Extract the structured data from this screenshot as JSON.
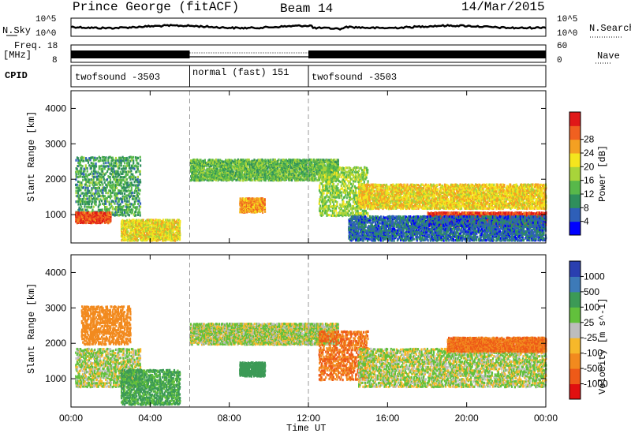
{
  "header": {
    "station": "Prince George (fitACF)",
    "beam": "Beam 14",
    "date": "14/Mar/2015"
  },
  "panels": {
    "nsky": {
      "label": "N.Sky",
      "tick_hi": "10^5",
      "tick_lo": "10^0"
    },
    "nsearch": {
      "label": "N.Search",
      "tick_hi": "10^5",
      "tick_lo": "10^0"
    },
    "freq": {
      "label_line1": "Freq.",
      "label_line2": "[MHz]",
      "tick_hi": "18",
      "tick_lo": "8"
    },
    "nave": {
      "label": "Nave",
      "tick_hi": "60",
      "tick_lo": "0"
    },
    "cpid": {
      "label": "CPID",
      "modes": [
        {
          "name": "twofsound -3503",
          "start_hour": 0,
          "end_hour": 6
        },
        {
          "name": "normal (fast) 151",
          "start_hour": 6,
          "end_hour": 12
        },
        {
          "name": "twofsound -3503",
          "start_hour": 12,
          "end_hour": 24
        }
      ]
    }
  },
  "chart_data": [
    {
      "type": "heatmap",
      "name": "power",
      "xlabel": "",
      "ylabel": "Slant Range [km]",
      "xlim": [
        0,
        24
      ],
      "ylim": [
        200,
        4500
      ],
      "y_ticks": [
        1000,
        2000,
        3000,
        4000
      ],
      "colorbar": {
        "label": "Power [dB]",
        "ticks": [
          "4",
          "8",
          "12",
          "16",
          "20",
          "24",
          "28"
        ],
        "range": [
          0,
          30
        ],
        "colors": [
          "#0000ff",
          "#2e5fb8",
          "#2f8f5c",
          "#58b84a",
          "#a8d43a",
          "#f4e51e",
          "#f4a022",
          "#f06020",
          "#e01818"
        ]
      },
      "echo_regions": [
        {
          "t": [
            0.2,
            3.5
          ],
          "range": [
            1000,
            2700
          ],
          "power": 10
        },
        {
          "t": [
            0.2,
            2.0
          ],
          "range": [
            800,
            1100
          ],
          "power": 26
        },
        {
          "t": [
            2.5,
            5.5
          ],
          "range": [
            300,
            900
          ],
          "power": 18
        },
        {
          "t": [
            6.0,
            13.5
          ],
          "range": [
            2000,
            2600
          ],
          "power": 12
        },
        {
          "t": [
            8.5,
            9.8
          ],
          "range": [
            1100,
            1500
          ],
          "power": 22
        },
        {
          "t": [
            12.5,
            15.0
          ],
          "range": [
            1000,
            2400
          ],
          "power": 14
        },
        {
          "t": [
            14.5,
            24.0
          ],
          "range": [
            1200,
            1900
          ],
          "power": 19
        },
        {
          "t": [
            18.0,
            24.0
          ],
          "range": [
            700,
            1100
          ],
          "power": 27
        },
        {
          "t": [
            14.0,
            24.0
          ],
          "range": [
            300,
            1000
          ],
          "power": 6
        }
      ]
    },
    {
      "type": "heatmap",
      "name": "velocity",
      "xlabel": "Time UT",
      "ylabel": "Slant Range [km]",
      "xlim": [
        0,
        24
      ],
      "ylim": [
        200,
        4500
      ],
      "x_ticks": [
        "00:00",
        "04:00",
        "08:00",
        "12:00",
        "16:00",
        "20:00",
        "00:00"
      ],
      "y_ticks": [
        1000,
        2000,
        3000,
        4000
      ],
      "colorbar": {
        "label": "Velocity [m s^-1]",
        "ticks": [
          "1000",
          "500",
          "100",
          "25",
          "-25",
          "-100",
          "-500",
          "-1000"
        ],
        "colors": [
          "#2a3fb0",
          "#3d7ab8",
          "#3c9a56",
          "#62c03c",
          "#bdbdbd",
          "#f6b82a",
          "#f28a1e",
          "#ee5a18",
          "#e01010"
        ]
      },
      "echo_regions": [
        {
          "t": [
            0.2,
            3.5
          ],
          "range": [
            800,
            1900
          ],
          "velocity": 0
        },
        {
          "t": [
            0.5,
            3.0
          ],
          "range": [
            2000,
            3100
          ],
          "velocity": -150
        },
        {
          "t": [
            2.5,
            5.5
          ],
          "range": [
            300,
            1300
          ],
          "velocity": 80
        },
        {
          "t": [
            6.0,
            13.5
          ],
          "range": [
            2000,
            2600
          ],
          "velocity": 0
        },
        {
          "t": [
            8.5,
            9.8
          ],
          "range": [
            1100,
            1500
          ],
          "velocity": 150
        },
        {
          "t": [
            12.5,
            15.0
          ],
          "range": [
            1000,
            2400
          ],
          "velocity": -300
        },
        {
          "t": [
            14.5,
            24.0
          ],
          "range": [
            800,
            1900
          ],
          "velocity": 0
        },
        {
          "t": [
            19.0,
            24.0
          ],
          "range": [
            1800,
            2200
          ],
          "velocity": -300
        }
      ]
    }
  ]
}
